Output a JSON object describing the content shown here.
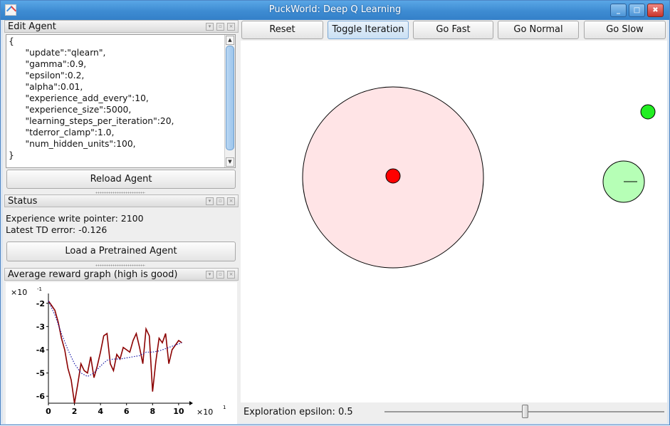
{
  "window": {
    "title": "PuckWorld: Deep Q Learning"
  },
  "edit_agent": {
    "title": "Edit Agent",
    "code_lines": [
      "{",
      "      \"update\":\"qlearn\",",
      "      \"gamma\":0.9,",
      "      \"epsilon\":0.2,",
      "      \"alpha\":0.01,",
      "      \"experience_add_every\":10,",
      "      \"experience_size\":5000,",
      "      \"learning_steps_per_iteration\":20,",
      "      \"tderror_clamp\":1.0,",
      "      \"num_hidden_units\":100,",
      "}"
    ],
    "reload_label": "Reload Agent"
  },
  "status": {
    "title": "Status",
    "experience_pointer": "Experience write pointer: 2100",
    "td_error": "Latest TD error: -0.126",
    "load_label": "Load a Pretrained Agent"
  },
  "reward_graph": {
    "title": "Average reward graph (high is good)"
  },
  "toolbar": {
    "reset_label": "Reset",
    "toggle_label": "Toggle Iteration",
    "fast_label": "Go Fast",
    "normal_label": "Go Normal",
    "slow_label": "Go Slow"
  },
  "bottom": {
    "epsilon_label": "Exploration epsilon: 0.5",
    "epsilon_value": 0.5
  },
  "colors": {
    "reward_line": "#8b0000",
    "avg_line": "#1a1aa8",
    "danger_zone": "#ffe4e6",
    "enemy": "#ff0000",
    "agent": "#b6ffb6",
    "target": "#22ee22"
  },
  "chart_data": {
    "type": "line",
    "xlabel": "",
    "ylabel": "",
    "x_exponent_label": "×10",
    "x_exponent": "1",
    "y_exponent_label": "×10",
    "y_exponent": "-1",
    "x_ticks": [
      "0",
      "2",
      "4",
      "6",
      "8",
      "10"
    ],
    "y_ticks": [
      "-2",
      "-3",
      "-4",
      "-5",
      "-6"
    ],
    "xlim": [
      0,
      10.5
    ],
    "ylim": [
      -6.3,
      -1.7
    ],
    "series": [
      {
        "style": "solid",
        "x": [
          0,
          0.25,
          0.5,
          0.75,
          1.0,
          1.25,
          1.5,
          1.75,
          2.0,
          2.25,
          2.5,
          2.75,
          3.0,
          3.25,
          3.5,
          3.75,
          4.0,
          4.25,
          4.5,
          4.75,
          5.0,
          5.25,
          5.5,
          5.75,
          6.0,
          6.25,
          6.5,
          6.75,
          7.0,
          7.25,
          7.5,
          7.75,
          8.0,
          8.25,
          8.5,
          8.75,
          9.0,
          9.25,
          9.5,
          9.75,
          10.0,
          10.25
        ],
        "y": [
          -1.9,
          -2.1,
          -2.3,
          -2.8,
          -3.5,
          -4.0,
          -4.8,
          -5.3,
          -6.3,
          -5.5,
          -4.6,
          -4.9,
          -5.0,
          -4.3,
          -5.2,
          -4.7,
          -4.1,
          -3.4,
          -3.3,
          -4.6,
          -4.9,
          -4.2,
          -4.4,
          -3.9,
          -4.0,
          -4.1,
          -3.6,
          -3.3,
          -3.9,
          -4.6,
          -3.1,
          -3.4,
          -5.8,
          -4.5,
          -3.5,
          -3.7,
          -3.3,
          -4.6,
          -4.0,
          -3.8,
          -3.6,
          -3.7
        ]
      },
      {
        "style": "dotted",
        "x": [
          0,
          0.5,
          1.0,
          1.5,
          2.0,
          2.5,
          3.0,
          3.5,
          4.0,
          4.5,
          5.0,
          5.5,
          6.0,
          6.5,
          7.0,
          7.5,
          8.0,
          8.5,
          9.0,
          9.5,
          10.0,
          10.25
        ],
        "y": [
          -1.9,
          -2.5,
          -3.3,
          -4.0,
          -4.6,
          -5.0,
          -5.15,
          -5.0,
          -4.7,
          -4.45,
          -4.4,
          -4.4,
          -4.35,
          -4.3,
          -4.25,
          -4.1,
          -4.1,
          -4.05,
          -3.95,
          -3.85,
          -3.75,
          -3.7
        ]
      }
    ]
  },
  "scene": {
    "danger_circle": {
      "cx": 214,
      "cy": 192,
      "r": 127
    },
    "enemy_puck": {
      "cx": 214,
      "cy": 190,
      "r": 10
    },
    "agent_puck": {
      "cx": 538,
      "cy": 198,
      "r": 29
    },
    "target_puck": {
      "cx": 572,
      "cy": 100,
      "r": 10
    }
  }
}
